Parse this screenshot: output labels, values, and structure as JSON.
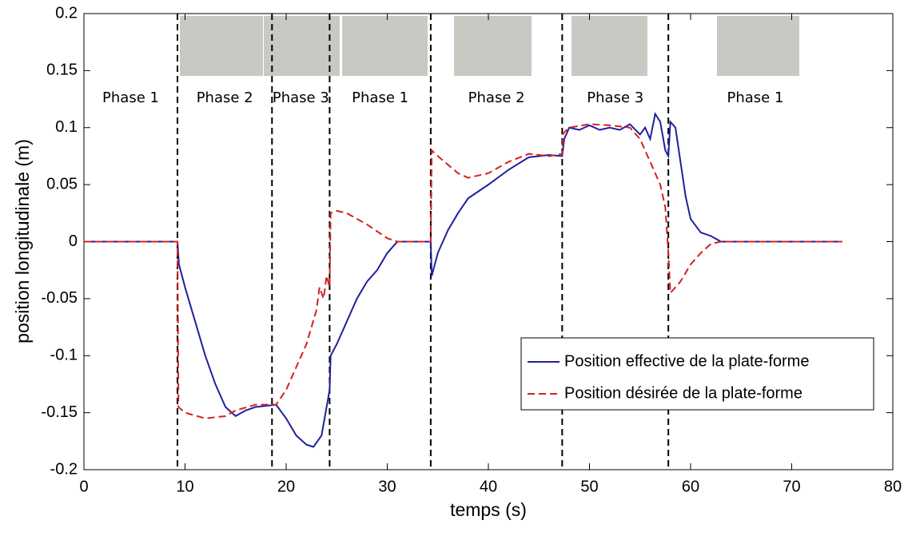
{
  "chart_data": {
    "type": "line",
    "xlabel": "temps (s)",
    "ylabel": "position longitudinale (m)",
    "xlim": [
      0,
      80
    ],
    "xticks": [
      0,
      10,
      20,
      30,
      40,
      50,
      60,
      70,
      80
    ],
    "ylim": [
      -0.2,
      0.2
    ],
    "yticks": [
      -0.2,
      -0.15,
      -0.1,
      -0.05,
      0,
      0.05,
      0.1,
      0.15,
      0.2
    ],
    "grid": false,
    "legend": "lower right",
    "phase_boundaries": [
      9.25,
      18.6,
      24.3,
      34.3,
      47.3,
      57.8
    ],
    "phases": [
      "Phase 1",
      "Phase 2",
      "Phase 3",
      "Phase 1",
      "Phase 2",
      "Phase 3",
      "Phase 1"
    ],
    "series": [
      {
        "name": "Position effective de la plate-forme",
        "color": "#1f1f9e",
        "dash": false,
        "x": [
          0,
          6,
          9.25,
          9.4,
          10,
          11,
          12,
          13,
          14,
          15,
          16,
          17,
          18,
          19,
          20,
          21,
          22,
          22.7,
          23.5,
          24.3,
          24.4,
          25,
          26,
          27,
          28,
          29,
          30,
          31,
          34.3,
          34.4,
          35,
          36,
          37,
          38,
          40,
          42,
          44,
          46,
          47.3,
          47.5,
          48,
          49,
          50,
          51,
          52,
          53,
          54,
          55,
          55.5,
          56,
          56.5,
          57,
          57.5,
          57.8,
          58,
          58.5,
          59,
          59.5,
          60,
          61,
          62,
          63,
          75
        ],
        "values": [
          0,
          0,
          0,
          -0.02,
          -0.04,
          -0.07,
          -0.1,
          -0.125,
          -0.145,
          -0.153,
          -0.148,
          -0.145,
          -0.144,
          -0.143,
          -0.155,
          -0.17,
          -0.178,
          -0.18,
          -0.17,
          -0.13,
          -0.1,
          -0.09,
          -0.07,
          -0.05,
          -0.035,
          -0.025,
          -0.01,
          0,
          0,
          -0.03,
          -0.01,
          0.01,
          0.025,
          0.038,
          0.05,
          0.063,
          0.074,
          0.076,
          0.075,
          0.09,
          0.1,
          0.098,
          0.102,
          0.098,
          0.1,
          0.098,
          0.103,
          0.094,
          0.1,
          0.09,
          0.112,
          0.105,
          0.08,
          0.075,
          0.105,
          0.1,
          0.07,
          0.04,
          0.02,
          0.008,
          0.005,
          0,
          0
        ]
      },
      {
        "name": "Position désirée de la plate-forme",
        "color": "#d42020",
        "dash": true,
        "x": [
          0,
          9.25,
          9.35,
          10,
          12,
          14,
          15,
          17,
          19,
          20,
          21,
          22,
          23,
          23.3,
          23.7,
          24,
          24.3,
          24.4,
          25,
          26,
          28,
          30,
          31,
          34.3,
          34.4,
          35,
          37,
          38,
          40,
          42,
          44,
          46,
          47.3,
          47.4,
          48,
          50,
          52,
          54,
          55,
          56,
          57,
          57.5,
          57.8,
          58,
          59,
          60,
          61,
          62,
          63,
          75
        ],
        "values": [
          0,
          0,
          -0.145,
          -0.15,
          -0.155,
          -0.153,
          -0.148,
          -0.143,
          -0.143,
          -0.13,
          -0.11,
          -0.09,
          -0.06,
          -0.04,
          -0.05,
          -0.03,
          -0.04,
          0.025,
          0.027,
          0.025,
          0.015,
          0.003,
          0,
          0,
          0.08,
          0.075,
          0.06,
          0.056,
          0.06,
          0.07,
          0.077,
          0.075,
          0.077,
          0.095,
          0.1,
          0.103,
          0.102,
          0.1,
          0.09,
          0.07,
          0.05,
          0.03,
          -0.01,
          -0.045,
          -0.035,
          -0.02,
          -0.01,
          -0.002,
          0,
          0
        ]
      }
    ]
  }
}
